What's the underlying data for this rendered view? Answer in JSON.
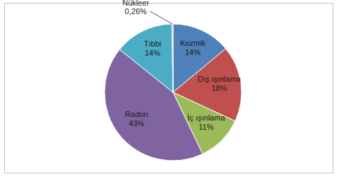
{
  "chart_data": {
    "type": "pie",
    "categories": [
      "Kozmik",
      "Dış ışınlama",
      "İç ışınlama",
      "Radon",
      "Tıbbi",
      "Nükleer"
    ],
    "values": [
      14,
      18,
      11,
      43,
      14,
      0.26
    ],
    "value_labels": [
      "14%",
      "18%",
      "11%",
      "43%",
      "14%",
      "0,26%"
    ],
    "colors": [
      "#4f81bd",
      "#c0504d",
      "#9bbb59",
      "#8064a2",
      "#4bacc6",
      "#f79646"
    ],
    "data_labels": true
  }
}
